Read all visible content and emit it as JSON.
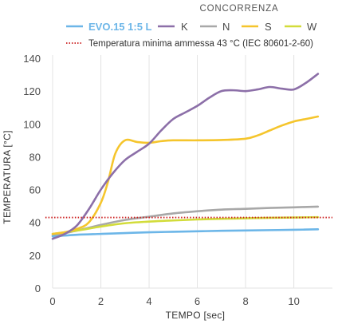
{
  "chart_data": {
    "type": "line",
    "xlabel": "TEMPO [sec]",
    "ylabel": "TEMPERATURA [°C]",
    "xlim": [
      0,
      11.6
    ],
    "ylim": [
      0,
      140
    ],
    "x_ticks": [
      0,
      2,
      4,
      6,
      8,
      10
    ],
    "y_ticks": [
      0,
      20,
      40,
      60,
      80,
      100,
      120,
      140
    ],
    "grid": "vertical",
    "legend_placement": "top",
    "legend_group_title": "CONCORRENZA",
    "series": [
      {
        "name": "EVO.15 1:5 L",
        "color": "#6cb6e8",
        "x": [
          0,
          1,
          2,
          3,
          4,
          5,
          6,
          7,
          8,
          9,
          10,
          11
        ],
        "y": [
          31.5,
          32.5,
          33,
          33.5,
          34,
          34.3,
          34.6,
          34.9,
          35.1,
          35.3,
          35.5,
          35.8
        ]
      },
      {
        "name": "K",
        "color": "#8c6fa8",
        "x": [
          0,
          0.5,
          1,
          1.5,
          2,
          2.5,
          3,
          3.5,
          4,
          4.5,
          5,
          5.5,
          6,
          6.5,
          7,
          7.5,
          8,
          8.5,
          9,
          9.5,
          10,
          10.5,
          11
        ],
        "y": [
          30,
          33,
          38,
          48,
          60,
          70,
          78,
          83,
          88,
          96,
          103,
          107,
          111,
          116,
          120,
          120.5,
          120,
          121,
          122.5,
          121.5,
          121,
          125,
          130.5
        ]
      },
      {
        "name": "N",
        "color": "#a8a8a8",
        "x": [
          0,
          1,
          2,
          3,
          4,
          5,
          6,
          7,
          8,
          9,
          10,
          11
        ],
        "y": [
          32,
          35,
          38.5,
          41.5,
          43.5,
          45.5,
          46.8,
          47.8,
          48.3,
          48.8,
          49.2,
          49.6
        ]
      },
      {
        "name": "S",
        "color": "#f5c52c",
        "x": [
          0,
          0.5,
          1,
          1.5,
          2,
          2.3,
          2.6,
          3,
          3.5,
          4,
          4.5,
          5,
          6,
          7,
          8,
          8.5,
          9,
          9.5,
          10,
          10.5,
          11
        ],
        "y": [
          33,
          34,
          36,
          40,
          52,
          65,
          82,
          90,
          89,
          88.5,
          89.5,
          90,
          90,
          90.2,
          91,
          93,
          96,
          99,
          101.5,
          103,
          104.5
        ]
      },
      {
        "name": "W",
        "color": "#d2dc3a",
        "x": [
          0,
          1,
          2,
          3,
          4,
          5,
          6,
          7,
          8,
          9,
          10,
          11
        ],
        "y": [
          33,
          35,
          37.5,
          39.5,
          40.5,
          41.2,
          41.8,
          42.2,
          42.5,
          42.8,
          43,
          43.2
        ]
      },
      {
        "name": "Temperatura minima ammessa 43 °C (IEC 80601-2-60)",
        "color": "#cc1f1f",
        "style": "dotted",
        "x": [
          -0.3,
          11.6
        ],
        "y": [
          43,
          43
        ]
      }
    ]
  }
}
